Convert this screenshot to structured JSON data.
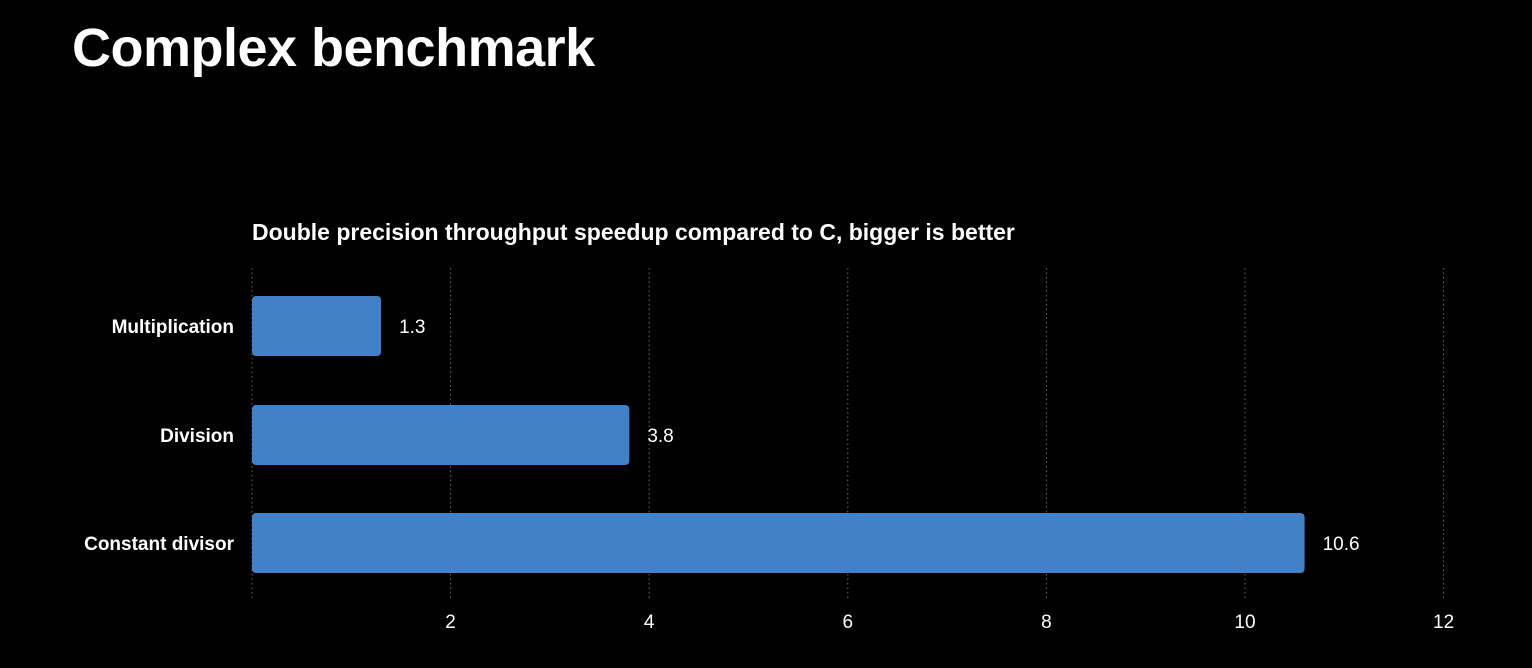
{
  "slide": {
    "title": "Complex benchmark"
  },
  "chart_data": {
    "type": "bar",
    "orientation": "horizontal",
    "title": "Double precision throughput speedup compared to C, bigger is better",
    "xlabel": "",
    "ylabel": "",
    "categories": [
      "Multiplication",
      "Division",
      "Constant divisor"
    ],
    "values": [
      1.3,
      3.8,
      10.6
    ],
    "value_labels": [
      "1.3",
      "3.8",
      "10.6"
    ],
    "xlim": [
      0,
      12
    ],
    "xticks": [
      2,
      4,
      6,
      8,
      10,
      12
    ],
    "grid": "vertical dotted",
    "legend": "none",
    "colors": {
      "bar": "#4281C7",
      "background": "#000000",
      "text": "#FFFFFF",
      "grid": "#6a6a6a"
    }
  }
}
